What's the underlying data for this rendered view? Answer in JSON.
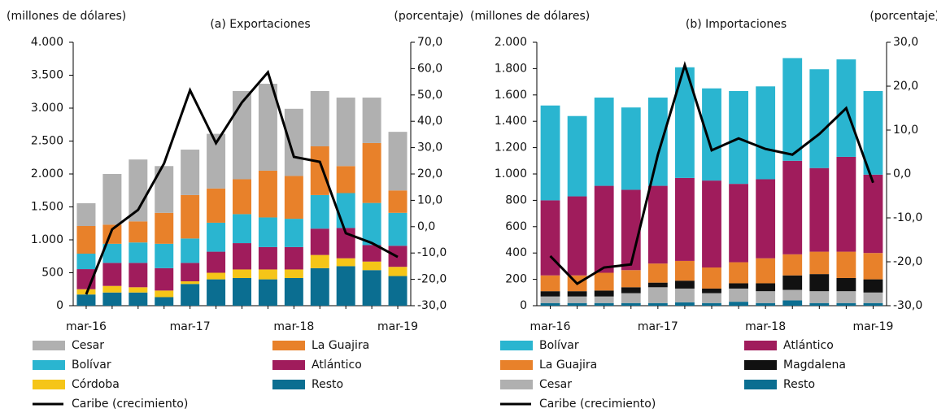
{
  "chart_data": [
    {
      "type": "bar",
      "stacked": true,
      "title": "(a)  Exportaciones",
      "ylabel": "(millones  de dólares)",
      "y2label": "(porcentaje)",
      "categories": [
        "mar-16",
        null,
        null,
        null,
        "mar-17",
        null,
        null,
        null,
        "mar-18",
        null,
        null,
        null,
        "mar-19"
      ],
      "ylim": [
        0,
        4000
      ],
      "yticks": [
        0,
        500,
        {
          "value": 1000,
          "label": "1.000"
        },
        {
          "value": 1500,
          "label": "1.500"
        },
        {
          "value": 2000,
          "label": "2.000"
        },
        {
          "value": 2500,
          "label": "2.500"
        },
        {
          "value": 3000,
          "label": "3.000"
        },
        {
          "value": 3500,
          "label": "3.500"
        },
        {
          "value": 4000,
          "label": "4.000"
        }
      ],
      "y2lim": [
        -30,
        70
      ],
      "y2ticks": [
        {
          "value": -30,
          "label": "-30,0"
        },
        {
          "value": -20,
          "label": "-20,0"
        },
        {
          "value": -10,
          "label": "-10,0"
        },
        {
          "value": 0,
          "label": "0,0"
        },
        {
          "value": 10,
          "label": "10,0"
        },
        {
          "value": 20,
          "label": "20,0"
        },
        {
          "value": 30,
          "label": "30,0"
        },
        {
          "value": 40,
          "label": "40,0"
        },
        {
          "value": 50,
          "label": "50,0"
        },
        {
          "value": 60,
          "label": "60,0"
        },
        {
          "value": 70,
          "label": "70,0"
        }
      ],
      "series": [
        {
          "name": "Resto",
          "color": "#0b6e91",
          "values": [
            170,
            200,
            200,
            130,
            330,
            400,
            420,
            400,
            420,
            570,
            600,
            540,
            450
          ]
        },
        {
          "name": "Córdoba",
          "color": "#f5c518",
          "values": [
            80,
            100,
            80,
            100,
            40,
            100,
            130,
            150,
            130,
            200,
            120,
            130,
            140
          ]
        },
        {
          "name": "Atlántico",
          "color": "#a01c5c",
          "values": [
            305,
            350,
            370,
            340,
            280,
            320,
            400,
            340,
            340,
            400,
            460,
            250,
            320
          ]
        },
        {
          "name": "Bolívar",
          "color": "#2ab5d0",
          "values": [
            235,
            290,
            310,
            370,
            370,
            440,
            440,
            450,
            430,
            510,
            530,
            640,
            500
          ]
        },
        {
          "name": "La Guajira",
          "color": "#e8812a",
          "values": [
            420,
            290,
            320,
            470,
            660,
            520,
            530,
            710,
            650,
            740,
            410,
            910,
            340
          ]
        },
        {
          "name": "Cesar",
          "color": "#b0b0b0",
          "values": [
            346,
            770,
            940,
            710,
            690,
            830,
            1340,
            1320,
            1020,
            840,
            1040,
            690,
            890
          ]
        },
        {
          "name": "Caribe (crecimiento)",
          "color": "#000000",
          "type": "line",
          "axis": "y2",
          "values": [
            -25.7,
            -1,
            6.4,
            24,
            51.8,
            31.7,
            47.2,
            58.6,
            26.5,
            24.6,
            -2.5,
            -6.2,
            -11.5
          ]
        }
      ],
      "legend_order": [
        5,
        4,
        3,
        2,
        1,
        0,
        6
      ]
    },
    {
      "type": "bar",
      "stacked": true,
      "title": "(b)  Importaciones",
      "ylabel": "(millones  de dólares)",
      "y2label": "(porcentaje)",
      "categories": [
        "mar-16",
        null,
        null,
        null,
        "mar-17",
        null,
        null,
        null,
        "mar-18",
        null,
        null,
        null,
        "mar-19"
      ],
      "ylim": [
        0,
        2000
      ],
      "yticks": [
        0,
        200,
        400,
        600,
        800,
        {
          "value": 1000,
          "label": "1.000"
        },
        {
          "value": 1200,
          "label": "1.200"
        },
        {
          "value": 1400,
          "label": "1.400"
        },
        {
          "value": 1600,
          "label": "1.600"
        },
        {
          "value": 1800,
          "label": "1.800"
        },
        {
          "value": 2000,
          "label": "2.000"
        }
      ],
      "y2lim": [
        -30,
        30
      ],
      "y2ticks": [
        {
          "value": -30,
          "label": "-30,0"
        },
        {
          "value": -20,
          "label": "-20,0"
        },
        {
          "value": -10,
          "label": "-10,0"
        },
        {
          "value": 0,
          "label": "0,0"
        },
        {
          "value": 10,
          "label": "10,0"
        },
        {
          "value": 20,
          "label": "20,0"
        },
        {
          "value": 30,
          "label": "30,0"
        }
      ],
      "series": [
        {
          "name": "Resto",
          "color": "#0b6e91",
          "values": [
            20,
            20,
            20,
            20,
            20,
            25,
            20,
            30,
            20,
            40,
            20,
            20,
            20
          ]
        },
        {
          "name": "Cesar",
          "color": "#b0b0b0",
          "values": [
            50,
            50,
            50,
            75,
            120,
            105,
            75,
            100,
            90,
            80,
            90,
            90,
            80
          ]
        },
        {
          "name": "Magdalena",
          "color": "#111111",
          "values": [
            40,
            40,
            45,
            45,
            35,
            60,
            35,
            40,
            60,
            110,
            130,
            100,
            100
          ]
        },
        {
          "name": "La Guajira",
          "color": "#e8812a",
          "values": [
            120,
            120,
            135,
            130,
            145,
            150,
            160,
            160,
            190,
            160,
            170,
            200,
            200
          ]
        },
        {
          "name": "Atlántico",
          "color": "#a01c5c",
          "values": [
            570,
            600,
            660,
            610,
            590,
            630,
            660,
            595,
            600,
            710,
            635,
            720,
            595
          ]
        },
        {
          "name": "Bolívar",
          "color": "#2ab5d0",
          "values": [
            720,
            610,
            670,
            625,
            670,
            840,
            700,
            705,
            705,
            780,
            750,
            740,
            635
          ]
        },
        {
          "name": "Caribe (crecimiento)",
          "color": "#000000",
          "type": "line",
          "axis": "y2",
          "values": [
            -18.7,
            -25,
            -21.3,
            -20.6,
            4.4,
            24.8,
            5.4,
            8.1,
            5.7,
            4.4,
            9.1,
            15,
            -2
          ]
        }
      ],
      "legend_order": [
        5,
        4,
        3,
        2,
        1,
        0,
        6
      ]
    }
  ]
}
